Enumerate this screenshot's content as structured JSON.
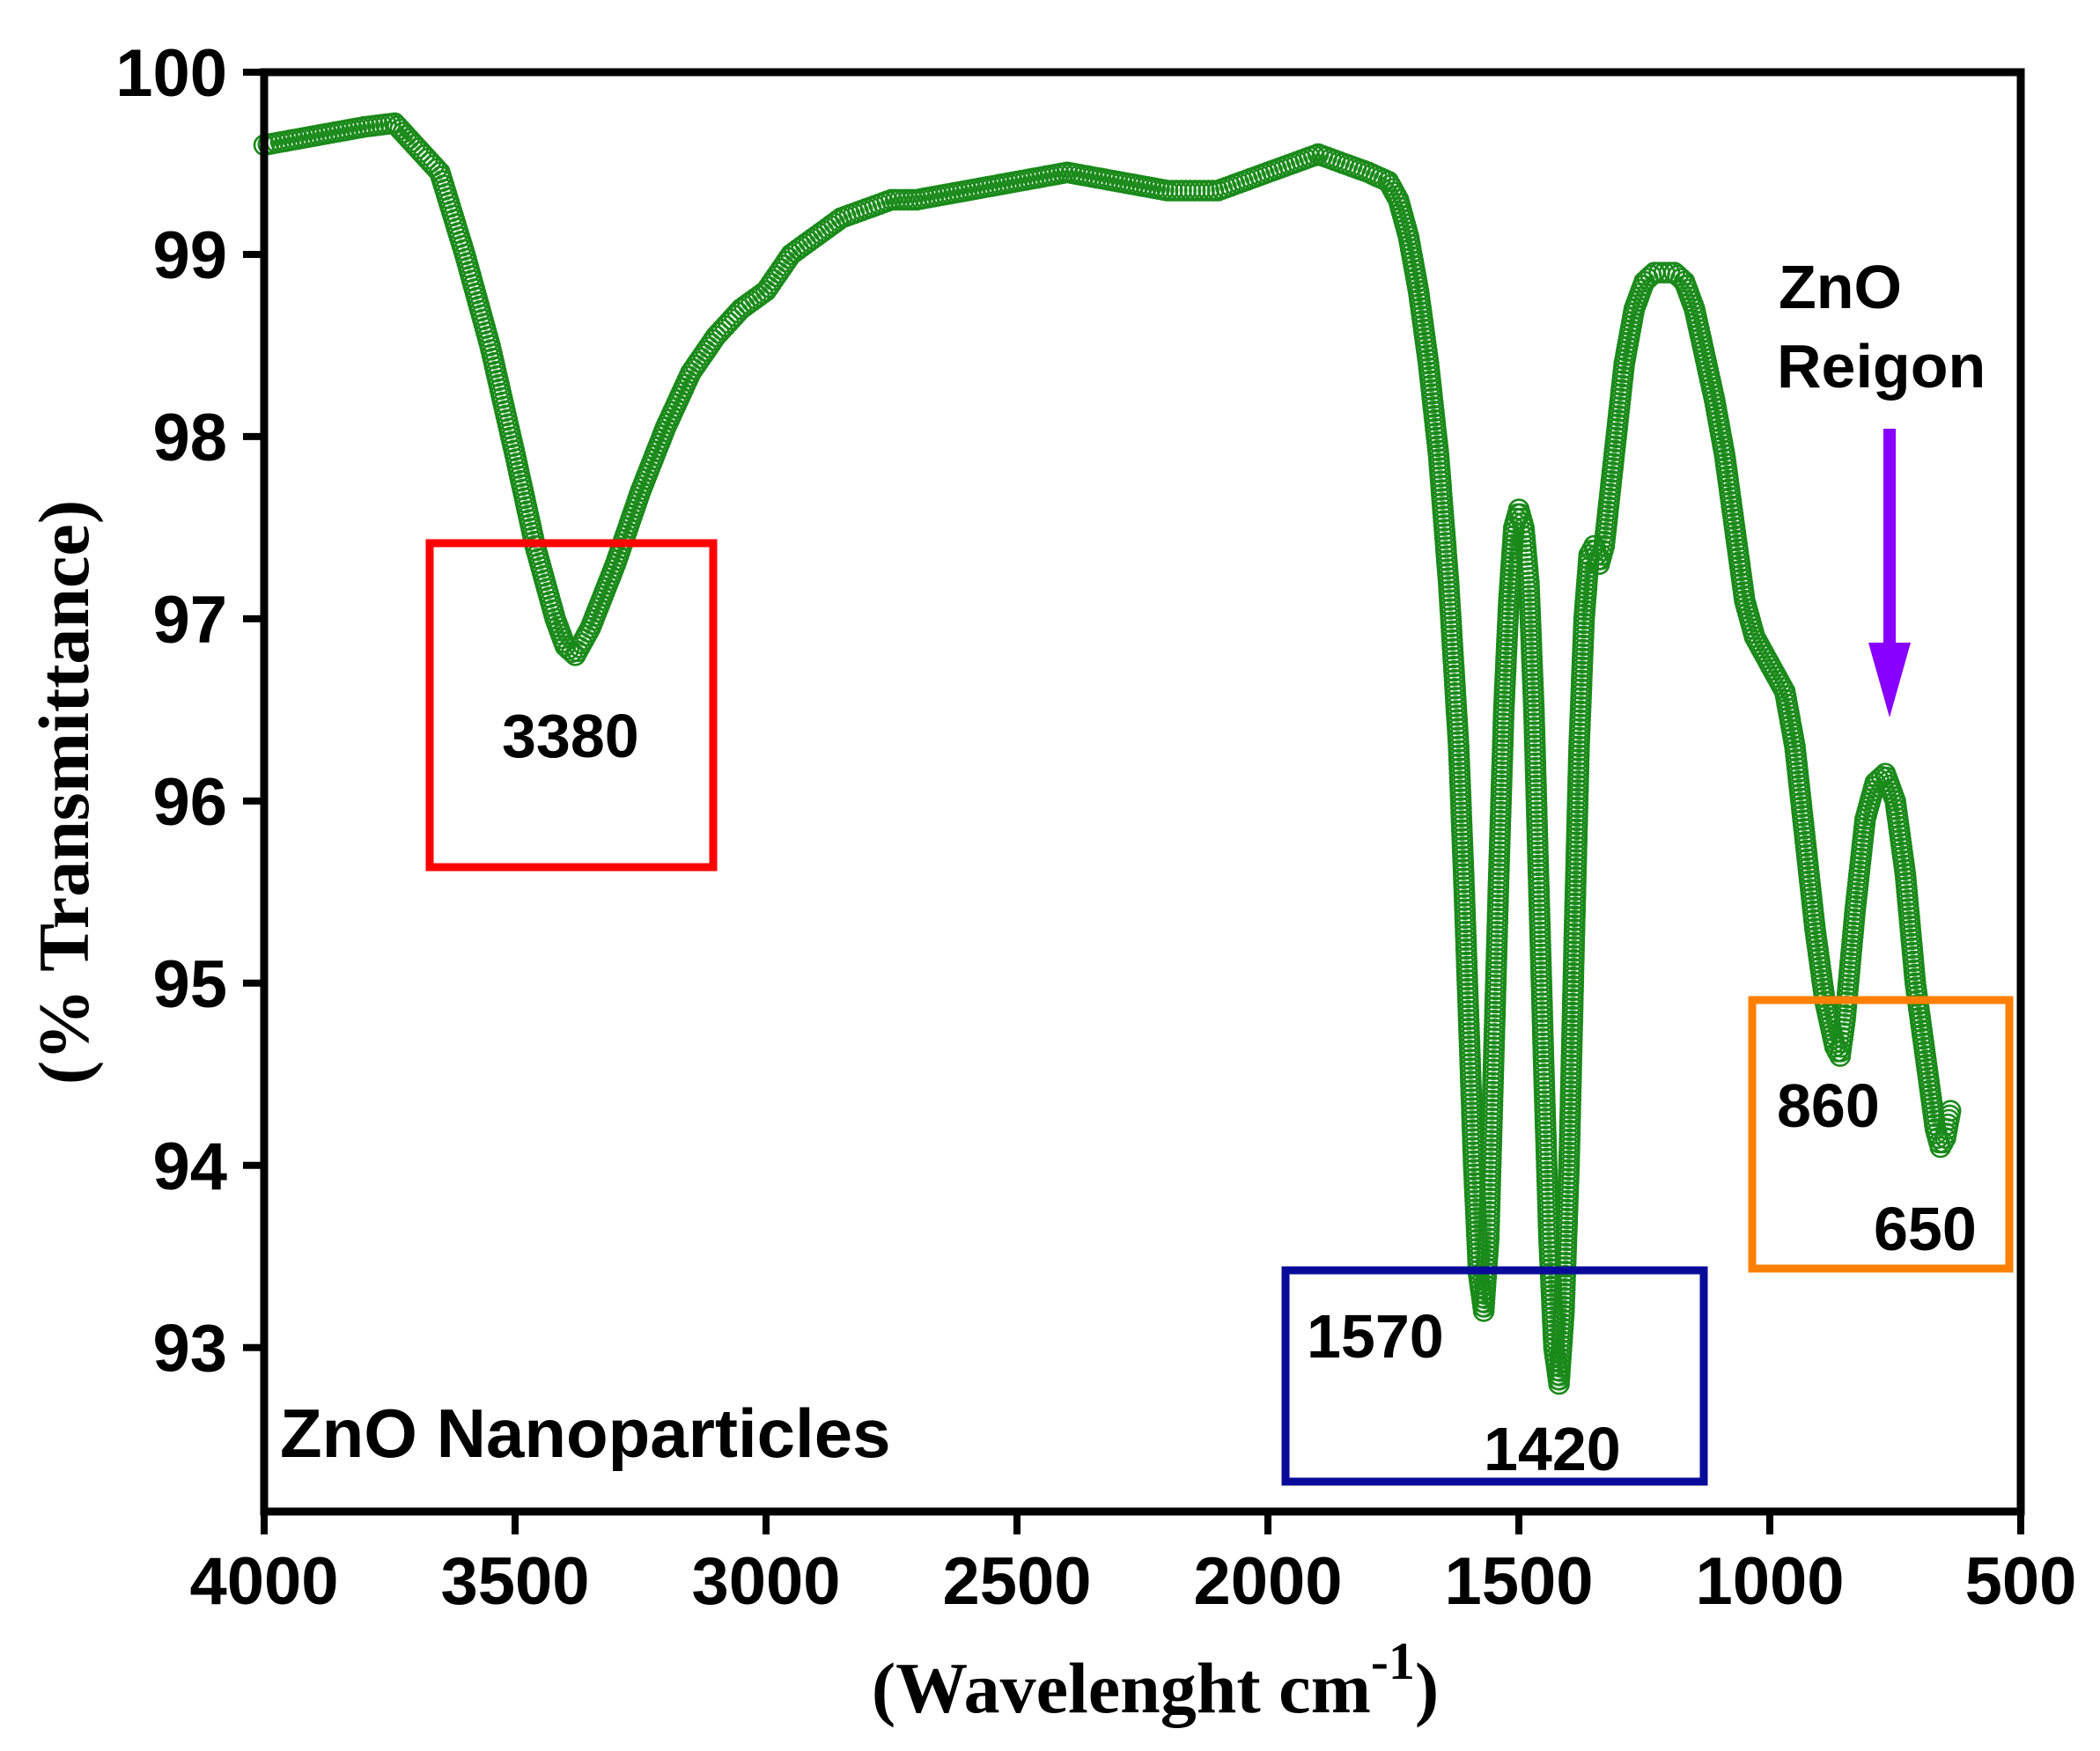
{
  "chart_data": {
    "type": "scatter",
    "title": "",
    "xlabel": "(Wavelenght cm",
    "xlabel_sup": "-1",
    "xlabel_close": ")",
    "ylabel": "(% Transmittance)",
    "xlim": [
      4000,
      500
    ],
    "ylim": [
      92.1,
      100
    ],
    "x_ticks": [
      4000,
      3500,
      3000,
      2500,
      2000,
      1500,
      1000,
      500
    ],
    "x_tick_labels": [
      "4000",
      "3500",
      "3000",
      "2500",
      "2000",
      "1500",
      "1000",
      "500"
    ],
    "y_ticks": [
      93,
      94,
      95,
      96,
      97,
      98,
      99,
      100
    ],
    "y_tick_labels": [
      "93",
      "94",
      "95",
      "96",
      "97",
      "98",
      "99",
      "100"
    ],
    "grid": false,
    "colors": {
      "series": "#1a8a1a",
      "box_3380": "#ff0000",
      "box_1570_1420": "#0a0a9a",
      "box_860_650": "#ff8000",
      "arrow": "#8800ff"
    },
    "series": [
      {
        "name": "ZnO Nanoparticles",
        "marker": "open-circle",
        "x": [
          4000,
          3900,
          3800,
          3740,
          3700,
          3650,
          3600,
          3550,
          3500,
          3460,
          3420,
          3400,
          3380,
          3350,
          3300,
          3250,
          3200,
          3150,
          3100,
          3050,
          3000,
          2950,
          2900,
          2850,
          2800,
          2750,
          2700,
          2600,
          2500,
          2400,
          2300,
          2200,
          2100,
          2000,
          1950,
          1900,
          1850,
          1800,
          1760,
          1740,
          1720,
          1700,
          1680,
          1660,
          1640,
          1620,
          1610,
          1600,
          1590,
          1580,
          1570,
          1560,
          1550,
          1540,
          1530,
          1520,
          1510,
          1500,
          1490,
          1480,
          1470,
          1460,
          1450,
          1440,
          1430,
          1420,
          1410,
          1400,
          1390,
          1380,
          1370,
          1360,
          1350,
          1340,
          1330,
          1310,
          1290,
          1270,
          1250,
          1230,
          1210,
          1190,
          1170,
          1150,
          1130,
          1110,
          1090,
          1070,
          1050,
          1030,
          1010,
          990,
          970,
          950,
          930,
          910,
          890,
          870,
          860,
          850,
          830,
          810,
          790,
          770,
          750,
          730,
          710,
          690,
          670,
          660,
          650,
          640
        ],
        "y": [
          99.6,
          99.65,
          99.7,
          99.72,
          99.6,
          99.45,
          99.0,
          98.5,
          97.9,
          97.4,
          97.0,
          96.85,
          96.8,
          96.95,
          97.3,
          97.7,
          98.05,
          98.35,
          98.55,
          98.7,
          98.8,
          99.0,
          99.1,
          99.2,
          99.25,
          99.3,
          99.3,
          99.35,
          99.4,
          99.45,
          99.4,
          99.35,
          99.35,
          99.45,
          99.5,
          99.55,
          99.5,
          99.45,
          99.4,
          99.3,
          99.1,
          98.8,
          98.4,
          97.9,
          97.2,
          96.3,
          95.6,
          94.8,
          94.0,
          93.4,
          93.2,
          93.6,
          94.6,
          95.6,
          96.5,
          97.1,
          97.5,
          97.6,
          97.5,
          97.2,
          96.5,
          95.5,
          94.5,
          93.6,
          93.0,
          92.8,
          93.2,
          94.0,
          95.2,
          96.3,
          97.0,
          97.35,
          97.4,
          97.3,
          97.4,
          97.9,
          98.4,
          98.7,
          98.85,
          98.9,
          98.9,
          98.9,
          98.85,
          98.7,
          98.45,
          98.2,
          97.9,
          97.5,
          97.1,
          96.9,
          96.8,
          96.7,
          96.6,
          96.3,
          95.8,
          95.3,
          94.9,
          94.65,
          94.6,
          94.8,
          95.4,
          95.9,
          96.1,
          96.15,
          96.0,
          95.6,
          95.0,
          94.6,
          94.2,
          94.1,
          94.15,
          94.3
        ]
      }
    ],
    "annotations": [
      {
        "text": "3380",
        "x": 3380
      },
      {
        "text": "1570",
        "x": 1570
      },
      {
        "text": "1420",
        "x": 1420
      },
      {
        "text": "860",
        "x": 860
      },
      {
        "text": "650",
        "x": 650
      },
      {
        "text": "ZnO",
        "x": 780
      },
      {
        "text": "Reigon",
        "x": 780
      }
    ],
    "sample_label": "ZnO Nanoparticles"
  }
}
